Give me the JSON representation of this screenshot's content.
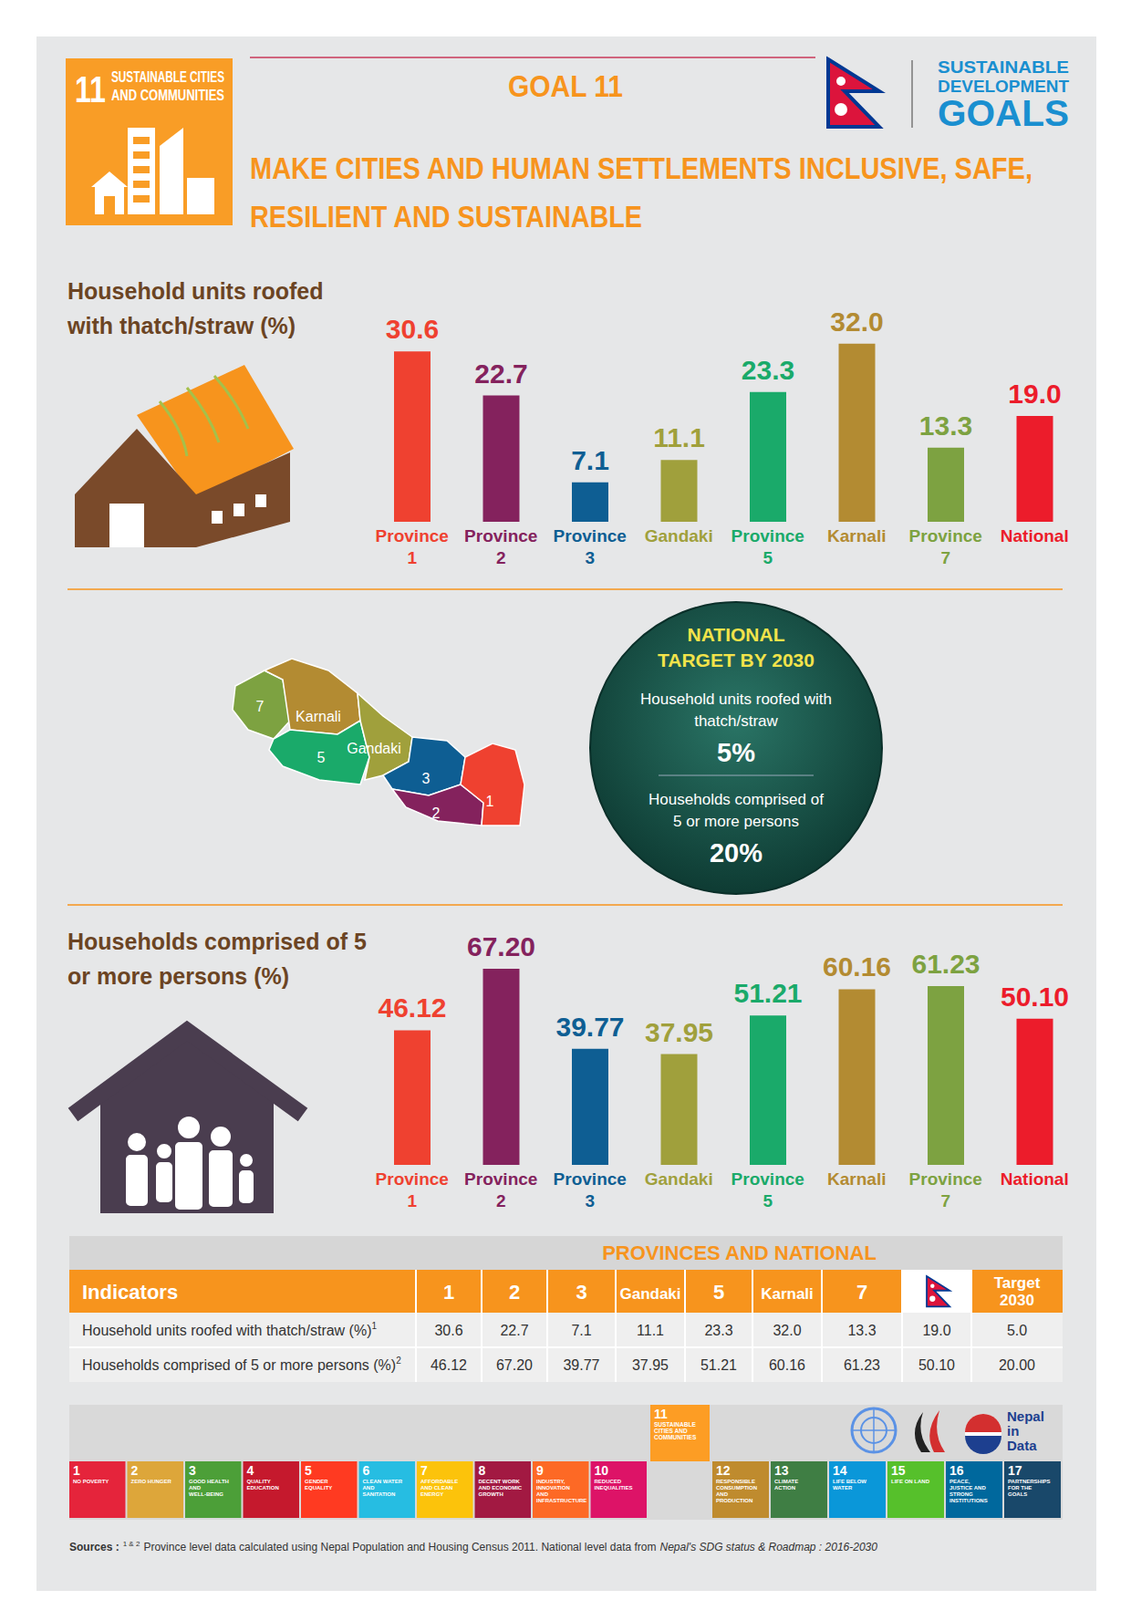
{
  "header": {
    "goal_icon": {
      "number": "11",
      "lines": [
        "SUSTAINABLE CITIES",
        "AND COMMUNITIES"
      ]
    },
    "goal": "GOAL 11",
    "title_lines": [
      "MAKE CITIES AND HUMAN SETTLEMENTS INCLUSIVE, SAFE,",
      "RESILIENT AND SUSTAINABLE"
    ],
    "sdg_logo_lines": [
      "SUSTAINABLE",
      "DEVELOPMENT",
      "GOALS"
    ]
  },
  "chart_data": [
    {
      "type": "bar",
      "title": "Household units roofed with thatch/straw (%)",
      "categories": [
        "Province 1",
        "Province 2",
        "Province 3",
        "Gandaki",
        "Province 5",
        "Karnali",
        "Province 7",
        "National"
      ],
      "values": [
        30.6,
        22.7,
        7.1,
        11.1,
        23.3,
        32.0,
        13.3,
        19.0
      ],
      "value_labels": [
        "30.6",
        "22.7",
        "7.1",
        "11.1",
        "23.3",
        "32.0",
        "13.3",
        "19.0"
      ],
      "colors": [
        "#ef4130",
        "#84225d",
        "#0e5e93",
        "#a0a03c",
        "#1aaa6a",
        "#b38b32",
        "#7da241",
        "#ec1c2b"
      ],
      "ylim": [
        0,
        40
      ],
      "data_labels": true,
      "tick_labels": "x",
      "grid": false
    },
    {
      "type": "bar",
      "title": "Households comprised of 5 or more persons (%)",
      "categories": [
        "Province 1",
        "Province 2",
        "Province 3",
        "Gandaki",
        "Province 5",
        "Karnali",
        "Province 7",
        "National"
      ],
      "values": [
        46.12,
        67.2,
        39.77,
        37.95,
        51.21,
        60.16,
        61.23,
        50.1
      ],
      "value_labels": [
        "46.12",
        "67.20",
        "39.77",
        "37.95",
        "51.21",
        "60.16",
        "61.23",
        "50.10"
      ],
      "colors": [
        "#ef4130",
        "#84225d",
        "#0e5e93",
        "#a0a03c",
        "#1aaa6a",
        "#b38b32",
        "#7da241",
        "#ec1c2b"
      ],
      "ylim": [
        0,
        80
      ],
      "data_labels": true,
      "tick_labels": "x",
      "grid": false
    }
  ],
  "map_labels": [
    "7",
    "Karnali",
    "5",
    "Gandaki",
    "3",
    "2",
    "1"
  ],
  "target": {
    "title_lines": [
      "NATIONAL",
      "TARGET BY 2030"
    ],
    "items": [
      {
        "lines": [
          "Household units roofed with",
          "thatch/straw"
        ],
        "value": "5%"
      },
      {
        "lines": [
          "Households comprised of",
          "5 or more persons"
        ],
        "value": "20%"
      }
    ]
  },
  "table": {
    "title": "PROVINCES AND NATIONAL",
    "header_label": "Indicators",
    "columns": [
      "1",
      "2",
      "3",
      "Gandaki",
      "5",
      "Karnali",
      "7"
    ],
    "target_column": "Target 2030",
    "rows": [
      {
        "indicator": "Household units roofed with thatch/straw (%)",
        "note": "1",
        "cells": [
          "30.6",
          "22.7",
          "7.1",
          "11.1",
          "23.3",
          "32.0",
          "13.3",
          "19.0",
          "5.0"
        ]
      },
      {
        "indicator": "Households comprised of 5 or more persons (%)",
        "note": "2",
        "cells": [
          "46.12",
          "67.20",
          "39.77",
          "37.95",
          "51.21",
          "60.16",
          "61.23",
          "50.10",
          "20.00"
        ]
      }
    ]
  },
  "footer": {
    "sdg_icons": [
      {
        "number": "1",
        "label": "NO POVERTY"
      },
      {
        "number": "2",
        "label": "ZERO HUNGER"
      },
      {
        "number": "3",
        "label": "GOOD HEALTH AND WELL-BEING"
      },
      {
        "number": "4",
        "label": "QUALITY EDUCATION"
      },
      {
        "number": "5",
        "label": "GENDER EQUALITY"
      },
      {
        "number": "6",
        "label": "CLEAN WATER AND SANITATION"
      },
      {
        "number": "7",
        "label": "AFFORDABLE AND CLEAN ENERGY"
      },
      {
        "number": "8",
        "label": "DECENT WORK AND ECONOMIC GROWTH"
      },
      {
        "number": "9",
        "label": "INDUSTRY, INNOVATION AND INFRASTRUCTURE"
      },
      {
        "number": "10",
        "label": "REDUCED INEQUALITIES"
      },
      {
        "number": "11",
        "label": "SUSTAINABLE CITIES AND COMMUNITIES"
      },
      {
        "number": "12",
        "label": "RESPONSIBLE CONSUMPTION AND PRODUCTION"
      },
      {
        "number": "13",
        "label": "CLIMATE ACTION"
      },
      {
        "number": "14",
        "label": "LIFE BELOW WATER"
      },
      {
        "number": "15",
        "label": "LIFE ON LAND"
      },
      {
        "number": "16",
        "label": "PEACE, JUSTICE AND STRONG INSTITUTIONS"
      },
      {
        "number": "17",
        "label": "PARTNERSHIPS FOR THE GOALS"
      }
    ],
    "partner_logo_text": "Nepal in Data"
  },
  "sources": {
    "label": "Sources :",
    "marks": "1 & 2",
    "text": "Province level data calculated using Nepal Population and Housing Census 2011. National level data from",
    "italic": "Nepal's SDG status & Roadmap : 2016-2030"
  }
}
